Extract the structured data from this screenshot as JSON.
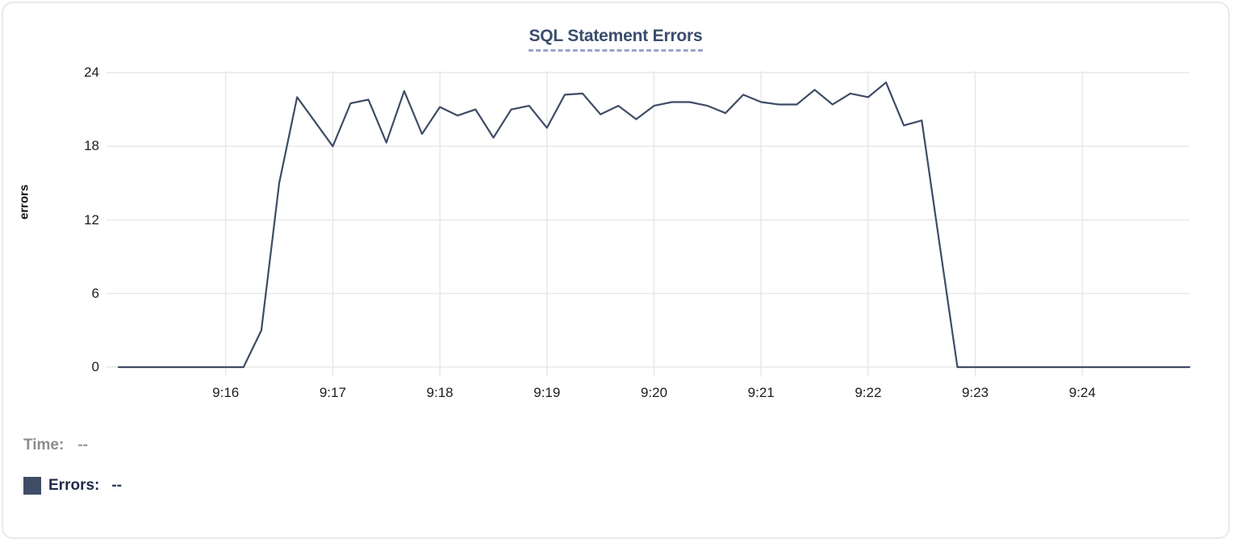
{
  "chart_data": {
    "type": "line",
    "title": "SQL Statement Errors",
    "xlabel": "",
    "ylabel": "errors",
    "x_start": "9:15:00",
    "x_end": "9:25:00",
    "interval_seconds": 10,
    "x_ticks": [
      "9:16",
      "9:17",
      "9:18",
      "9:19",
      "9:20",
      "9:21",
      "9:22",
      "9:23",
      "9:24"
    ],
    "y_ticks": [
      0,
      6,
      12,
      18,
      24
    ],
    "ylim": [
      0,
      24
    ],
    "grid": true,
    "legend_position": "bottom-left",
    "series": [
      {
        "name": "Errors",
        "color": "#3e4c66",
        "values": [
          0,
          0,
          0,
          0,
          0,
          0,
          0,
          0,
          3,
          15,
          22,
          20,
          18,
          21.5,
          21.8,
          18.3,
          22.5,
          19,
          21.2,
          20.5,
          21,
          18.7,
          21,
          21.3,
          19.5,
          22.2,
          22.3,
          20.6,
          21.3,
          20.2,
          21.3,
          21.6,
          21.6,
          21.3,
          20.7,
          22.2,
          21.6,
          21.4,
          21.4,
          22.6,
          21.4,
          22.3,
          22,
          23.2,
          19.7,
          20.1,
          10,
          0,
          0,
          0,
          0,
          0,
          0,
          0,
          0,
          0,
          0,
          0,
          0,
          0,
          0
        ]
      }
    ]
  },
  "legend": {
    "time_label": "Time:",
    "time_value": "--",
    "errors_label": "Errors:",
    "errors_value": "--",
    "swatch_color": "#3e4c66"
  },
  "colors": {
    "line": "#3e4c66",
    "grid": "#e8e8e8",
    "title": "#3a4d6e",
    "title_underline": "#98a5c6",
    "card_border": "#e9e9ee"
  }
}
